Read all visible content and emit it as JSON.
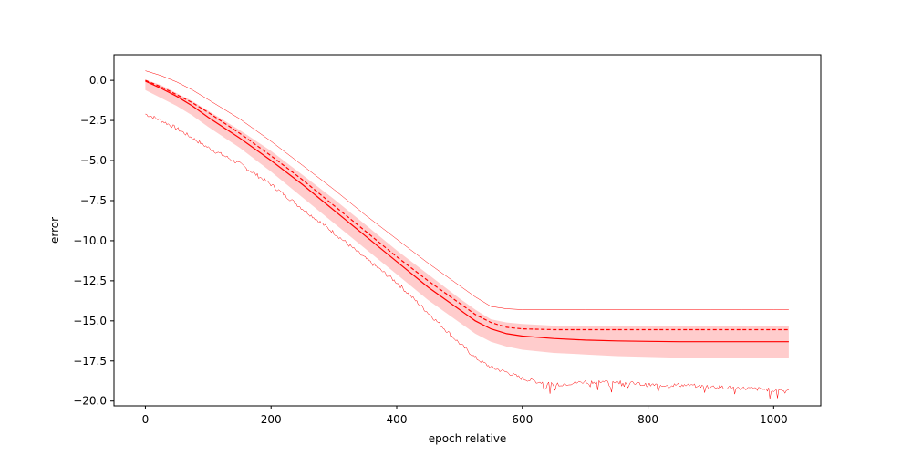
{
  "chart_data": {
    "type": "line",
    "title": "",
    "xlabel": "epoch relative",
    "ylabel": "error",
    "xlim": [
      -50,
      1075
    ],
    "ylim": [
      -20.3,
      1.6
    ],
    "grid": false,
    "xticks": [
      0,
      200,
      400,
      600,
      800,
      1000
    ],
    "xtick_labels": [
      "0",
      "200",
      "400",
      "600",
      "800",
      "1000"
    ],
    "yticks": [
      0.0,
      -2.5,
      -5.0,
      -7.5,
      -10.0,
      -12.5,
      -15.0,
      -17.5,
      -20.0
    ],
    "ytick_labels": [
      "0.0",
      "−2.5",
      "−5.0",
      "−7.5",
      "−10.0",
      "−12.5",
      "−15.0",
      "−17.5",
      "−20.0"
    ],
    "color": "#ff0000",
    "band_color": "#ffcccc",
    "series": [
      {
        "role": "mean",
        "style": "solid",
        "x": [
          0,
          25,
          50,
          75,
          100,
          150,
          200,
          250,
          300,
          350,
          400,
          450,
          500,
          525,
          550,
          575,
          600,
          650,
          700,
          750,
          800,
          850,
          900,
          950,
          1000,
          1024
        ],
        "values": [
          -0.05,
          -0.5,
          -1.0,
          -1.6,
          -2.3,
          -3.6,
          -5.0,
          -6.5,
          -8.1,
          -9.7,
          -11.3,
          -12.9,
          -14.3,
          -15.0,
          -15.5,
          -15.8,
          -15.95,
          -16.1,
          -16.2,
          -16.25,
          -16.28,
          -16.3,
          -16.3,
          -16.3,
          -16.3,
          -16.3
        ]
      },
      {
        "role": "median",
        "style": "dashed",
        "x": [
          0,
          25,
          50,
          75,
          100,
          150,
          200,
          250,
          300,
          350,
          400,
          450,
          500,
          525,
          550,
          575,
          600,
          650,
          700,
          750,
          800,
          850,
          900,
          950,
          1000,
          1024
        ],
        "values": [
          0.0,
          -0.4,
          -0.9,
          -1.4,
          -2.0,
          -3.3,
          -4.7,
          -6.2,
          -7.8,
          -9.4,
          -11.0,
          -12.5,
          -13.9,
          -14.6,
          -15.1,
          -15.4,
          -15.5,
          -15.55,
          -15.55,
          -15.55,
          -15.55,
          -15.55,
          -15.55,
          -15.55,
          -15.55,
          -15.55
        ]
      },
      {
        "role": "max",
        "style": "thin",
        "x": [
          0,
          25,
          50,
          75,
          100,
          150,
          200,
          250,
          300,
          350,
          400,
          450,
          500,
          525,
          550,
          575,
          600,
          650,
          700,
          750,
          800,
          850,
          900,
          950,
          1000,
          1024
        ],
        "values": [
          0.6,
          0.3,
          -0.1,
          -0.6,
          -1.2,
          -2.4,
          -3.8,
          -5.3,
          -6.8,
          -8.4,
          -9.9,
          -11.4,
          -12.8,
          -13.5,
          -14.1,
          -14.25,
          -14.3,
          -14.3,
          -14.3,
          -14.3,
          -14.3,
          -14.3,
          -14.3,
          -14.3,
          -14.3,
          -14.3
        ]
      },
      {
        "role": "min",
        "style": "thin-noisy",
        "x": [
          0,
          25,
          50,
          75,
          100,
          150,
          200,
          250,
          300,
          350,
          400,
          450,
          500,
          525,
          550,
          575,
          600,
          650,
          700,
          750,
          800,
          850,
          900,
          950,
          1000,
          1024
        ],
        "values": [
          -2.1,
          -2.5,
          -3.0,
          -3.6,
          -4.2,
          -5.2,
          -6.5,
          -8.0,
          -9.5,
          -11.1,
          -12.6,
          -14.5,
          -16.4,
          -17.3,
          -17.9,
          -18.2,
          -18.6,
          -19.0,
          -18.8,
          -18.8,
          -19.0,
          -19.0,
          -19.1,
          -19.2,
          -19.3,
          -19.3
        ]
      }
    ],
    "band": {
      "x": [
        0,
        25,
        50,
        75,
        100,
        150,
        200,
        250,
        300,
        350,
        400,
        450,
        500,
        525,
        550,
        575,
        600,
        650,
        700,
        750,
        800,
        850,
        900,
        950,
        1000,
        1024
      ],
      "upper": [
        0.05,
        -0.3,
        -0.8,
        -1.3,
        -1.9,
        -3.1,
        -4.4,
        -5.9,
        -7.4,
        -9.0,
        -10.6,
        -12.1,
        -13.6,
        -14.3,
        -14.9,
        -15.1,
        -15.2,
        -15.3,
        -15.3,
        -15.3,
        -15.3,
        -15.3,
        -15.3,
        -15.3,
        -15.3,
        -15.3
      ],
      "lower": [
        -0.6,
        -1.1,
        -1.6,
        -2.2,
        -2.9,
        -4.2,
        -5.7,
        -7.3,
        -8.9,
        -10.5,
        -12.1,
        -13.7,
        -15.1,
        -15.8,
        -16.3,
        -16.6,
        -16.8,
        -17.0,
        -17.1,
        -17.2,
        -17.25,
        -17.3,
        -17.3,
        -17.3,
        -17.3,
        -17.3
      ]
    }
  }
}
